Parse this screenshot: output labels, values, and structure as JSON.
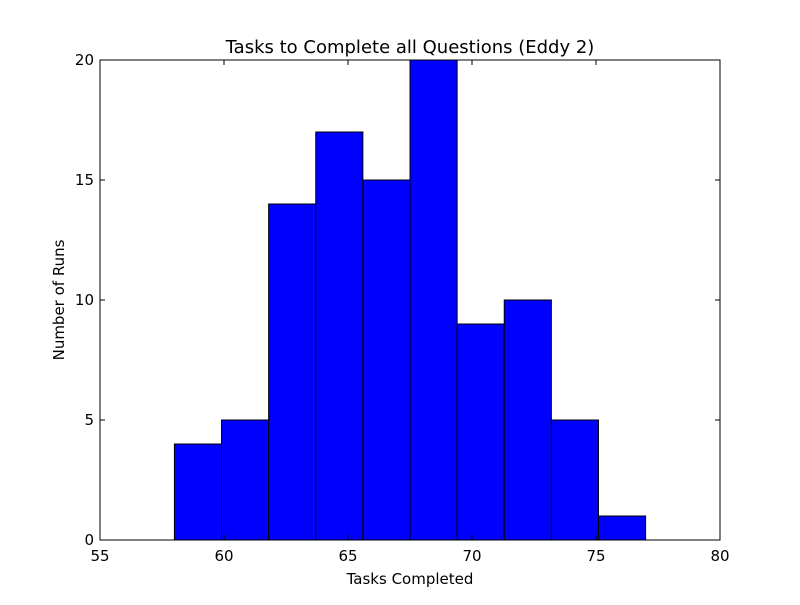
{
  "chart_data": {
    "type": "bar",
    "title": "Tasks to Complete all Questions (Eddy 2)",
    "xlabel": "Tasks Completed",
    "ylabel": "Number of Runs",
    "xlim": [
      55,
      80
    ],
    "ylim": [
      0,
      20
    ],
    "xticks": [
      "55",
      "60",
      "65",
      "70",
      "75",
      "80"
    ],
    "yticks": [
      "0",
      "5",
      "10",
      "15",
      "20"
    ],
    "bins": [
      {
        "start": 58.0,
        "end": 59.9,
        "count": 4
      },
      {
        "start": 59.9,
        "end": 61.8,
        "count": 5
      },
      {
        "start": 61.8,
        "end": 63.7,
        "count": 14
      },
      {
        "start": 63.7,
        "end": 65.6,
        "count": 17
      },
      {
        "start": 65.6,
        "end": 67.5,
        "count": 15
      },
      {
        "start": 67.5,
        "end": 69.4,
        "count": 20
      },
      {
        "start": 69.4,
        "end": 71.3,
        "count": 9
      },
      {
        "start": 71.3,
        "end": 73.2,
        "count": 10
      },
      {
        "start": 73.2,
        "end": 75.1,
        "count": 5
      },
      {
        "start": 75.1,
        "end": 77.0,
        "count": 1
      }
    ],
    "bar_color": "#0000ff",
    "edge_color": "#000000",
    "grid": false,
    "legend": "none"
  }
}
